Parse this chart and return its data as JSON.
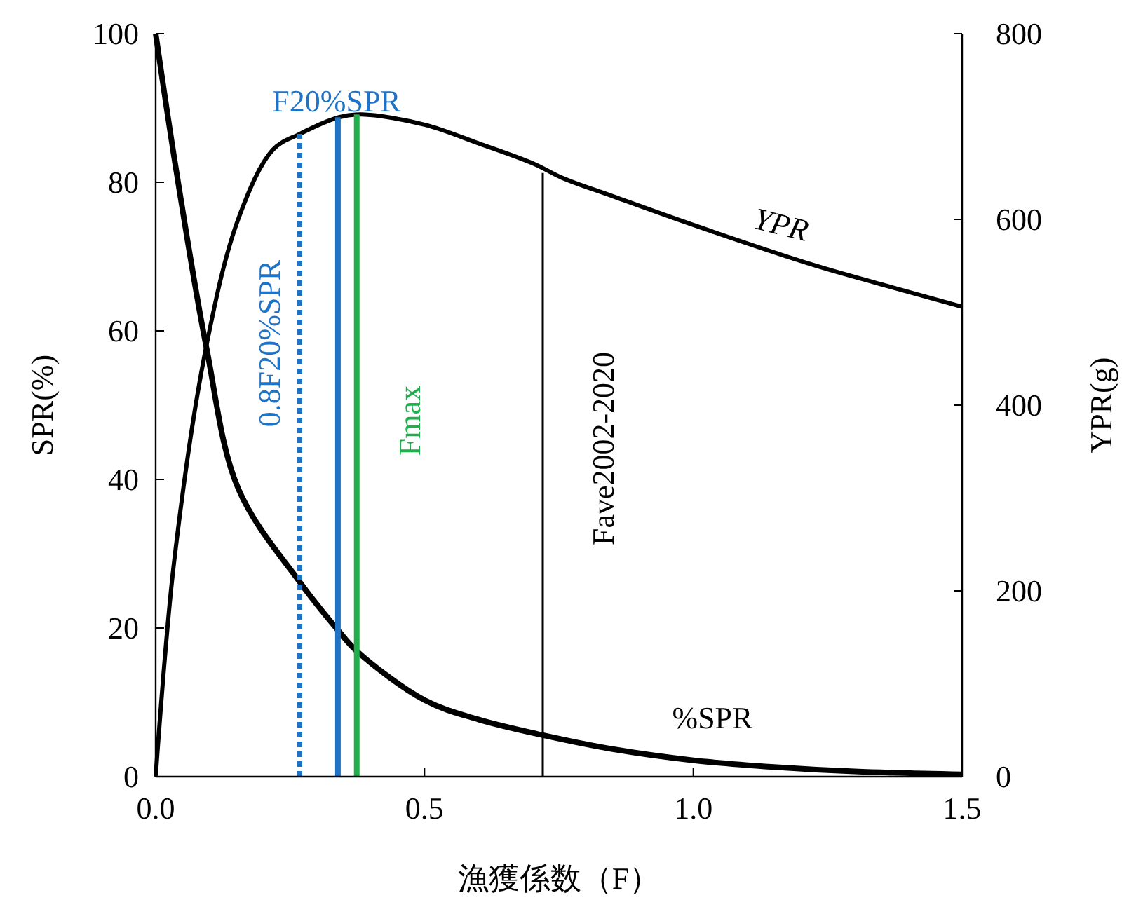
{
  "chart_data": {
    "type": "line",
    "xlabel": "漁獲係数（F）",
    "ylabel": "SPR(%)",
    "y2label": "YPR(g)",
    "xlim": [
      0,
      1.5
    ],
    "xticks": [
      {
        "value": 0,
        "label": "0.0"
      },
      {
        "value": 0.5,
        "label": "0.5"
      },
      {
        "value": 1,
        "label": "1.0"
      },
      {
        "value": 1.5,
        "label": "1.5"
      }
    ],
    "ylim": [
      0,
      100
    ],
    "yticks": [
      0,
      20,
      40,
      60,
      80,
      100
    ],
    "y2lim": [
      0,
      800
    ],
    "y2ticks": [
      0,
      200,
      400,
      600,
      800
    ],
    "series": [
      {
        "name": "%SPR",
        "color": "#000000",
        "x": [
          0,
          0.038,
          0.094,
          0.154,
          0.268,
          0.337,
          0.374,
          0.5,
          0.6,
          0.719,
          0.85,
          1.0,
          1.15,
          1.3,
          1.5
        ],
        "values": [
          100,
          81.7,
          57.9,
          38.7,
          26.2,
          19.9,
          16.9,
          10.3,
          7.7,
          5.6,
          3.7,
          2.2,
          1.3,
          0.7,
          0.3
        ]
      },
      {
        "name": "YPR",
        "color": "#000000",
        "axis": "y2",
        "x": [
          0,
          0.034,
          0.094,
          0.154,
          0.218,
          0.268,
          0.341,
          0.383,
          0.5,
          0.6,
          0.703,
          0.755,
          0.85,
          1.0,
          1.223,
          1.35,
          1.5
        ],
        "values": [
          0,
          230,
          463,
          601,
          675,
          692,
          710,
          713,
          702,
          682,
          660,
          645,
          625,
          594,
          551,
          530,
          506
        ]
      },
      {
        "name": "0.8F20%SPR",
        "color": "#1f73c6",
        "axis": "y2",
        "line_style": "dotted",
        "x": [
          0.268,
          0.268
        ],
        "values": [
          0,
          692
        ]
      },
      {
        "name": "F20%SPR",
        "color": "#1f73c6",
        "axis": "y2",
        "x": [
          0.339,
          0.339
        ],
        "values": [
          0,
          710
        ]
      },
      {
        "name": "Fmax",
        "color": "#1fb04c",
        "axis": "y2",
        "x": [
          0.374,
          0.374
        ],
        "values": [
          0,
          713
        ]
      },
      {
        "name": "Fave2002-2020",
        "color": "#000000",
        "axis": "y2",
        "x": [
          0.72,
          0.72
        ],
        "values": [
          0,
          650
        ]
      }
    ]
  }
}
